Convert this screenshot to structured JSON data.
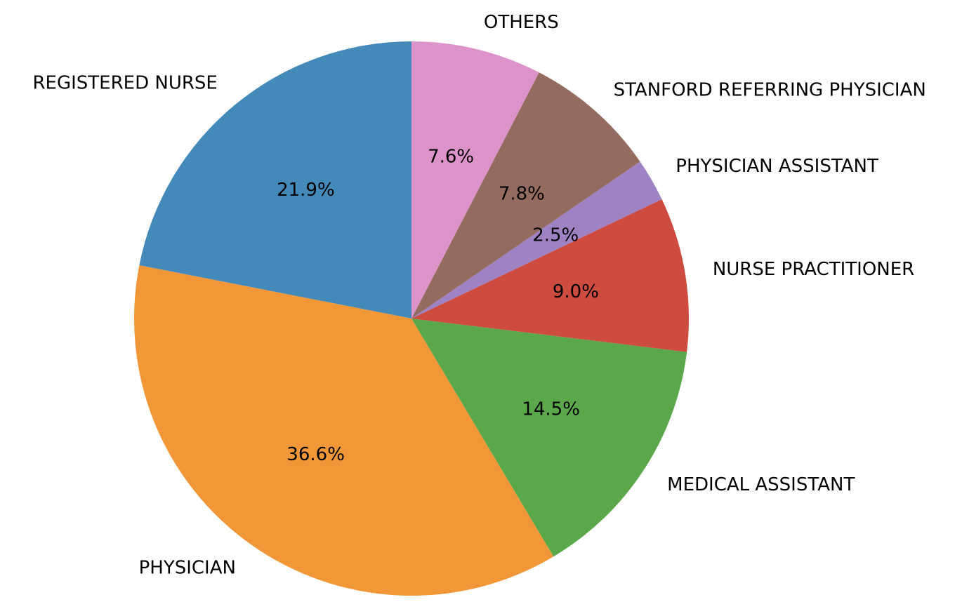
{
  "chart_data": {
    "type": "pie",
    "start_angle_deg": 90,
    "direction": "counterclockwise",
    "slices": [
      {
        "label": "REGISTERED NURSE",
        "value": 21.9,
        "pct_text": "21.9%",
        "color": "#4389BA"
      },
      {
        "label": "PHYSICIAN",
        "value": 36.6,
        "pct_text": "36.6%",
        "color": "#F29738"
      },
      {
        "label": "MEDICAL ASSISTANT",
        "value": 14.5,
        "pct_text": "14.5%",
        "color": "#5AA84A"
      },
      {
        "label": "NURSE PRACTITIONER",
        "value": 9.0,
        "pct_text": "9.0%",
        "color": "#CE4B3F"
      },
      {
        "label": "PHYSICIAN ASSISTANT",
        "value": 2.5,
        "pct_text": "2.5%",
        "color": "#9E82C4"
      },
      {
        "label": "STANFORD REFERRING PHYSICIAN",
        "value": 7.8,
        "pct_text": "7.8%",
        "color": "#946B5F"
      },
      {
        "label": "OTHERS",
        "value": 7.6,
        "pct_text": "7.6%",
        "color": "#DD93CA"
      }
    ]
  }
}
